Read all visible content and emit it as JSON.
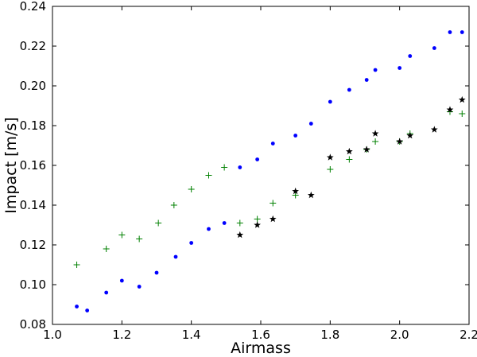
{
  "chart_data": {
    "type": "scatter",
    "title": "",
    "xlabel": "Airmass",
    "ylabel": "Impact [m/s]",
    "xlim": [
      1.0,
      2.2
    ],
    "ylim": [
      0.08,
      0.24
    ],
    "xticks": [
      1.0,
      1.2,
      1.4,
      1.6,
      1.8,
      2.0,
      2.2
    ],
    "xtick_labels": [
      "1.0",
      "1.2",
      "1.4",
      "1.6",
      "1.8",
      "2.0",
      "2.2"
    ],
    "yticks": [
      0.08,
      0.1,
      0.12,
      0.14,
      0.16,
      0.18,
      0.2,
      0.22,
      0.24
    ],
    "ytick_labels": [
      "0.08",
      "0.10",
      "0.12",
      "0.14",
      "0.16",
      "0.18",
      "0.20",
      "0.22",
      "0.24"
    ],
    "grid": false,
    "legend": "none",
    "series": [
      {
        "marker": "dot",
        "color": "#0000ff",
        "points": [
          [
            1.07,
            0.089
          ],
          [
            1.1,
            0.087
          ],
          [
            1.155,
            0.096
          ],
          [
            1.2,
            0.102
          ],
          [
            1.25,
            0.099
          ],
          [
            1.3,
            0.106
          ],
          [
            1.355,
            0.114
          ],
          [
            1.4,
            0.121
          ],
          [
            1.45,
            0.128
          ],
          [
            1.495,
            0.131
          ],
          [
            1.54,
            0.159
          ],
          [
            1.59,
            0.163
          ],
          [
            1.635,
            0.171
          ],
          [
            1.7,
            0.175
          ],
          [
            1.745,
            0.181
          ],
          [
            1.8,
            0.192
          ],
          [
            1.855,
            0.198
          ],
          [
            1.905,
            0.203
          ],
          [
            1.93,
            0.208
          ],
          [
            2.0,
            0.209
          ],
          [
            2.03,
            0.215
          ],
          [
            2.1,
            0.219
          ],
          [
            2.145,
            0.227
          ],
          [
            2.18,
            0.227
          ]
        ]
      },
      {
        "marker": "plus",
        "color": "#008000",
        "points": [
          [
            1.07,
            0.11
          ],
          [
            1.155,
            0.118
          ],
          [
            1.2,
            0.125
          ],
          [
            1.25,
            0.123
          ],
          [
            1.305,
            0.131
          ],
          [
            1.35,
            0.14
          ],
          [
            1.4,
            0.148
          ],
          [
            1.45,
            0.155
          ],
          [
            1.495,
            0.159
          ],
          [
            1.54,
            0.131
          ],
          [
            1.59,
            0.133
          ],
          [
            1.635,
            0.141
          ],
          [
            1.7,
            0.145
          ],
          [
            1.8,
            0.158
          ],
          [
            1.855,
            0.163
          ],
          [
            1.905,
            0.168
          ],
          [
            1.93,
            0.172
          ],
          [
            2.0,
            0.172
          ],
          [
            2.03,
            0.176
          ],
          [
            2.145,
            0.187
          ],
          [
            2.18,
            0.186
          ]
        ]
      },
      {
        "marker": "star",
        "color": "#000000",
        "points": [
          [
            1.54,
            0.125
          ],
          [
            1.59,
            0.13
          ],
          [
            1.635,
            0.133
          ],
          [
            1.7,
            0.147
          ],
          [
            1.745,
            0.145
          ],
          [
            1.8,
            0.164
          ],
          [
            1.855,
            0.167
          ],
          [
            1.905,
            0.168
          ],
          [
            1.93,
            0.176
          ],
          [
            2.0,
            0.172
          ],
          [
            2.03,
            0.175
          ],
          [
            2.1,
            0.178
          ],
          [
            2.145,
            0.188
          ],
          [
            2.18,
            0.193
          ]
        ]
      }
    ]
  }
}
